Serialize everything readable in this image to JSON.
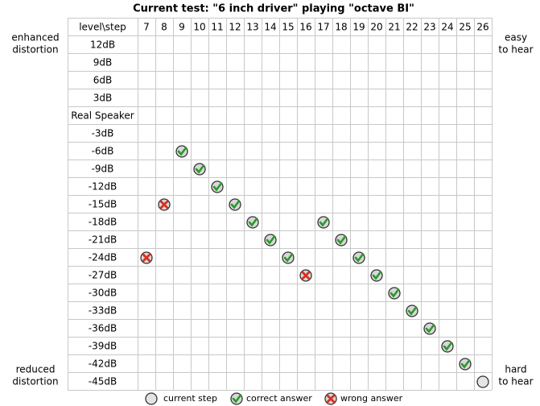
{
  "title": "Current test: \"6 inch driver\" playing \"octave BI\"",
  "side_labels": {
    "top_left": [
      "enhanced",
      "distortion"
    ],
    "top_right": [
      "easy",
      "to hear"
    ],
    "bottom_left": [
      "reduced",
      "distortion"
    ],
    "bottom_right": [
      "hard",
      "to hear"
    ]
  },
  "table": {
    "corner": "level\\step",
    "steps": [
      7,
      8,
      9,
      10,
      11,
      12,
      13,
      14,
      15,
      16,
      17,
      18,
      19,
      20,
      21,
      22,
      23,
      24,
      25,
      26
    ],
    "rows": [
      {
        "label": "12dB",
        "marks": []
      },
      {
        "label": "9dB",
        "marks": []
      },
      {
        "label": "6dB",
        "marks": []
      },
      {
        "label": "3dB",
        "marks": []
      },
      {
        "label": "Real Speaker",
        "marks": []
      },
      {
        "label": "-3dB",
        "marks": []
      },
      {
        "label": "-6dB",
        "marks": [
          {
            "step": 9,
            "result": "correct"
          }
        ]
      },
      {
        "label": "-9dB",
        "marks": [
          {
            "step": 10,
            "result": "correct"
          }
        ]
      },
      {
        "label": "-12dB",
        "marks": [
          {
            "step": 11,
            "result": "correct"
          }
        ]
      },
      {
        "label": "-15dB",
        "marks": [
          {
            "step": 8,
            "result": "wrong"
          },
          {
            "step": 12,
            "result": "correct"
          }
        ]
      },
      {
        "label": "-18dB",
        "marks": [
          {
            "step": 13,
            "result": "correct"
          },
          {
            "step": 17,
            "result": "correct"
          }
        ]
      },
      {
        "label": "-21dB",
        "marks": [
          {
            "step": 14,
            "result": "correct"
          },
          {
            "step": 18,
            "result": "correct"
          }
        ]
      },
      {
        "label": "-24dB",
        "marks": [
          {
            "step": 7,
            "result": "wrong"
          },
          {
            "step": 15,
            "result": "correct"
          },
          {
            "step": 19,
            "result": "correct"
          }
        ]
      },
      {
        "label": "-27dB",
        "marks": [
          {
            "step": 16,
            "result": "wrong"
          },
          {
            "step": 20,
            "result": "correct"
          }
        ]
      },
      {
        "label": "-30dB",
        "marks": [
          {
            "step": 21,
            "result": "correct"
          }
        ]
      },
      {
        "label": "-33dB",
        "marks": [
          {
            "step": 22,
            "result": "correct"
          }
        ]
      },
      {
        "label": "-36dB",
        "marks": [
          {
            "step": 23,
            "result": "correct"
          }
        ]
      },
      {
        "label": "-39dB",
        "marks": [
          {
            "step": 24,
            "result": "correct"
          }
        ]
      },
      {
        "label": "-42dB",
        "marks": [
          {
            "step": 25,
            "result": "correct"
          }
        ]
      },
      {
        "label": "-45dB",
        "marks": [
          {
            "step": 26,
            "result": "current"
          }
        ]
      }
    ]
  },
  "legend": [
    {
      "result": "current",
      "label": "current step"
    },
    {
      "result": "correct",
      "label": "correct answer"
    },
    {
      "result": "wrong",
      "label": "wrong answer"
    }
  ]
}
